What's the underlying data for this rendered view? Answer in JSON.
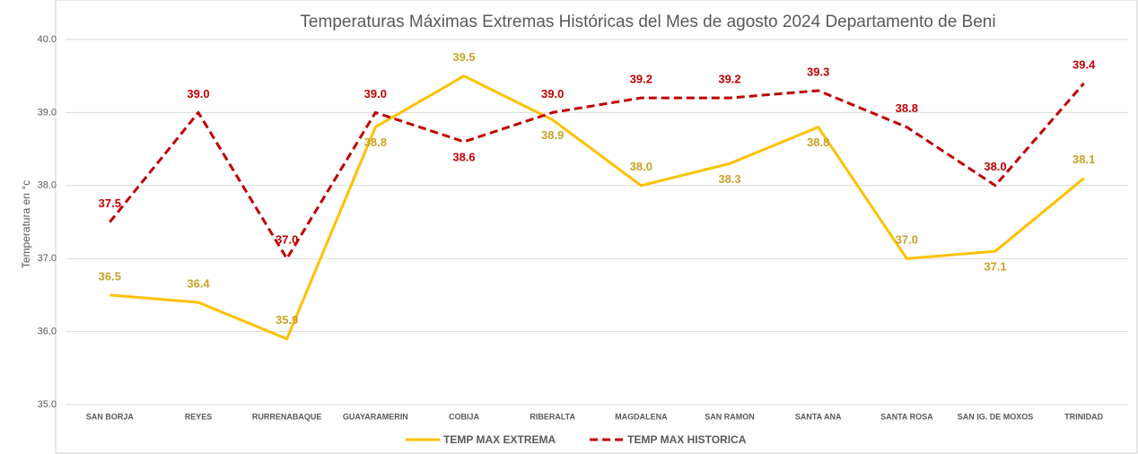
{
  "chart_data": {
    "type": "line",
    "title": "Temperaturas Máximas Extremas Históricas del Mes de agosto 2024 Departamento de Beni",
    "y_label": "Temperatura en °c",
    "categories": [
      "SAN BORJA",
      "REYES",
      "RURRENABAQUE",
      "GUAYARAMERIN",
      "COBIJA",
      "RIBERALTA",
      "MAGDALENA",
      "SAN RAMON",
      "SANTA ANA",
      "SANTA ROSA",
      "SAN IG. DE MOXOS",
      "TRINIDAD"
    ],
    "series": [
      {
        "name": "TEMP MAX EXTREMA",
        "color": "#ffc000",
        "dashed": false,
        "values": [
          36.5,
          36.4,
          35.9,
          38.8,
          39.5,
          38.9,
          38.0,
          38.3,
          38.8,
          37.0,
          37.1,
          38.1
        ],
        "value_labels": [
          "36.5",
          "36.4",
          "35.9",
          "38.8",
          "39.5",
          "38.9",
          "38.0",
          "38.3",
          "38.8",
          "37.0",
          "37.1",
          "38.1"
        ]
      },
      {
        "name": "TEMP MAX HISTORICA",
        "color": "#c00000",
        "dashed": true,
        "values": [
          37.5,
          39.0,
          37.0,
          39.0,
          38.6,
          39.0,
          39.2,
          39.2,
          39.3,
          38.8,
          38.0,
          39.4
        ],
        "value_labels": [
          "37.5",
          "39.0",
          "37.0",
          "39.0",
          "38.6",
          "39.0",
          "39.2",
          "39.2",
          "39.3",
          "38.8",
          "38.0",
          "39.4"
        ]
      }
    ],
    "ylim": [
      35,
      40
    ],
    "yticks": [
      {
        "value": 35,
        "label": "35.0"
      },
      {
        "value": 36,
        "label": "36.0"
      },
      {
        "value": 37,
        "label": "37.0"
      },
      {
        "value": 38,
        "label": "38.0"
      },
      {
        "value": 39,
        "label": "39.0"
      },
      {
        "value": 40,
        "label": "40.0"
      }
    ],
    "grid": true,
    "legend": "bottom"
  }
}
